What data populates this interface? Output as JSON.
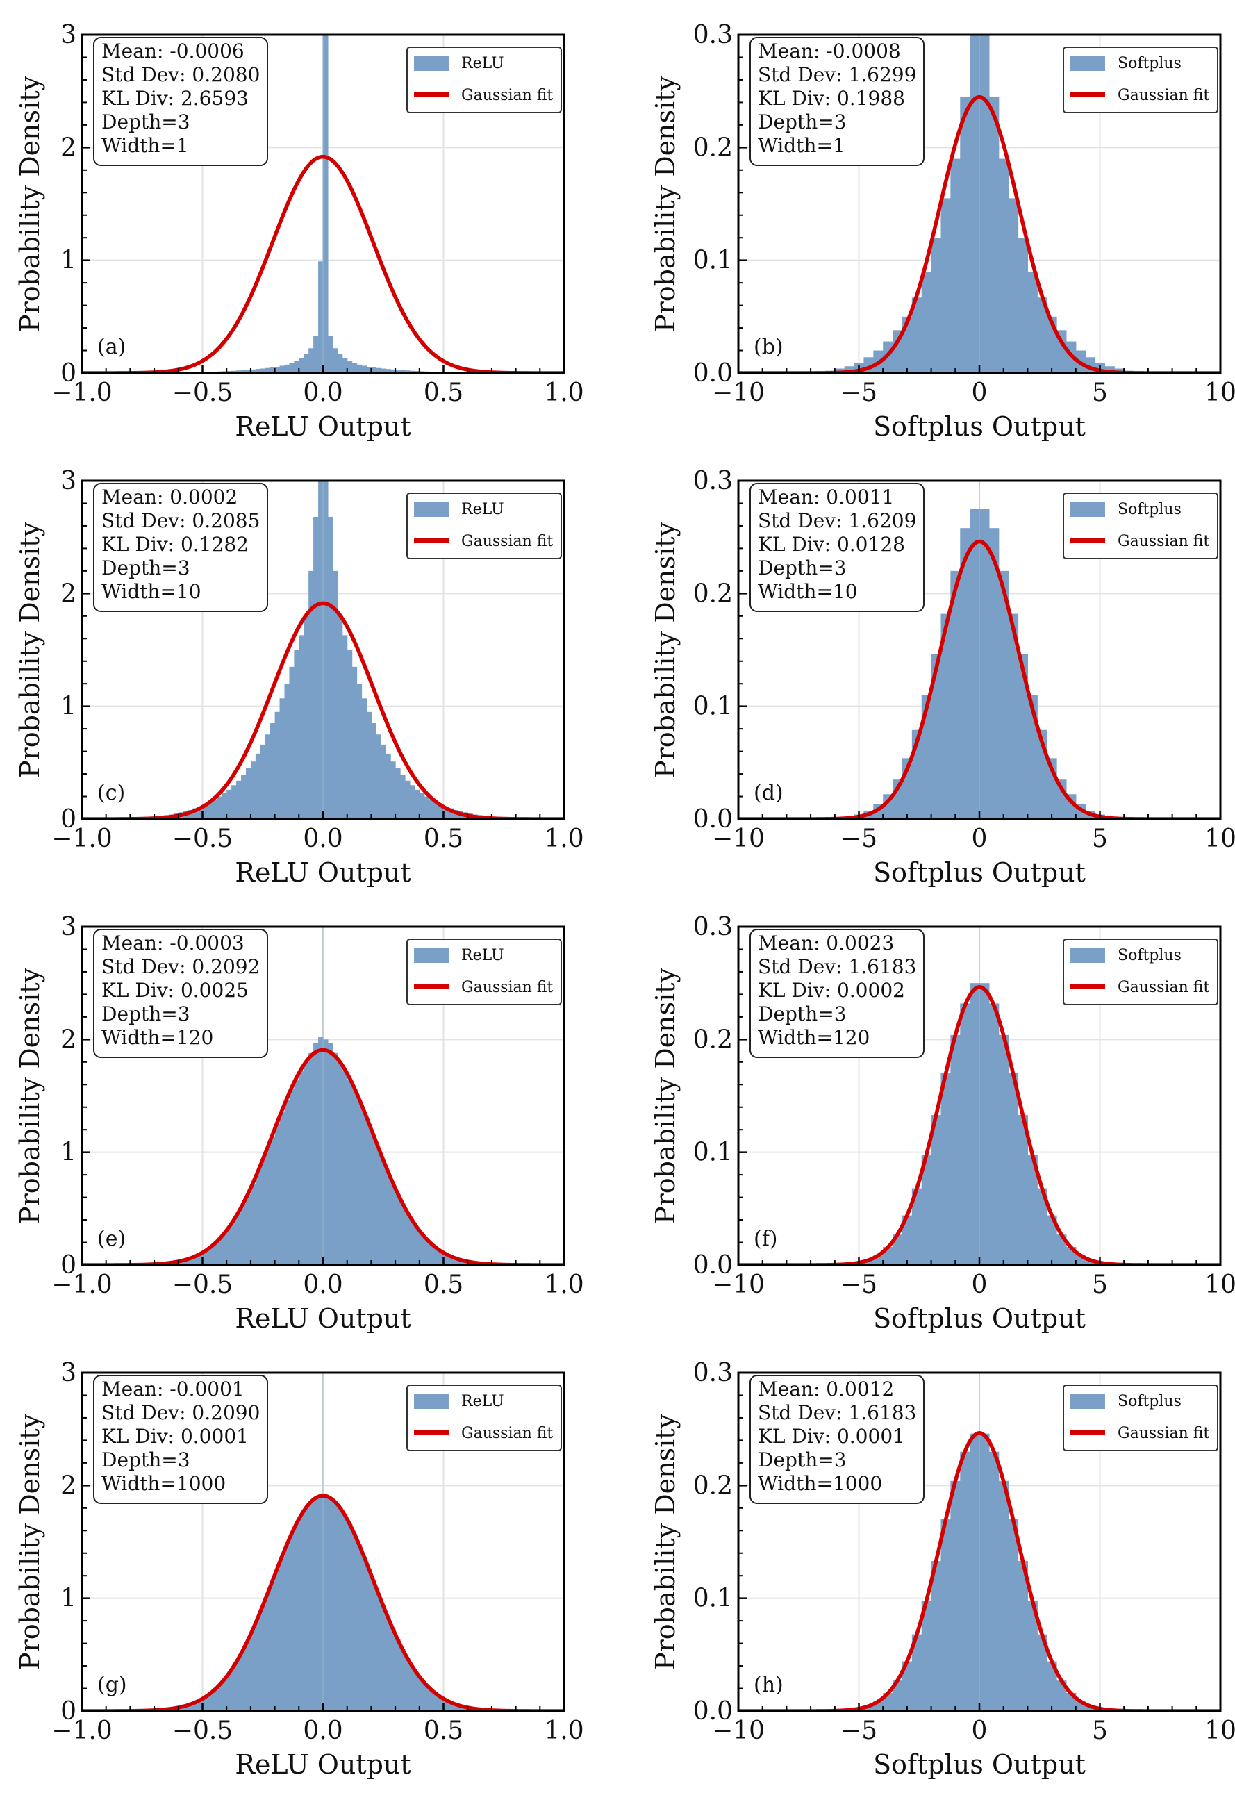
{
  "figure": {
    "layout": "4 rows x 2 columns grid of histogram panels",
    "colors": {
      "histogram_fill": "#7aa0c8",
      "gaussian_line": "#d40000",
      "grid": "#e3e3e3",
      "axis": "#000000"
    }
  },
  "chart_data": [
    {
      "type": "histogram",
      "panel": "(a)",
      "xlabel": "ReLU Output",
      "ylabel": "Probability Density",
      "xlim": [
        -1.0,
        1.0
      ],
      "ylim": [
        0,
        3
      ],
      "xticks": [
        "−1.0",
        "−0.5",
        "0.0",
        "0.5",
        "1.0"
      ],
      "xtick_values": [
        -1.0,
        -0.5,
        0.0,
        0.5,
        1.0
      ],
      "yticks": [
        "0",
        "1",
        "2",
        "3"
      ],
      "ytick_values": [
        0,
        1,
        2,
        3
      ],
      "grid": true,
      "legend": {
        "position": "top-right",
        "entries": [
          "ReLU",
          "Gaussian fit"
        ]
      },
      "stats": [
        "Mean: -0.0006",
        "Std Dev: 0.2080",
        "KL Div: 2.6593",
        "Depth=3",
        "Width=1"
      ],
      "fit": {
        "mean": -0.0006,
        "std": 0.208
      },
      "bin_width": 0.02,
      "half_bins_note": "density per bin for bin centers 0.01, 0.03, ... moving outward; mirrored to negative side except overrides",
      "half_densities": [
        12.0,
        0.33,
        0.22,
        0.17,
        0.13,
        0.11,
        0.09,
        0.075,
        0.065,
        0.055,
        0.05,
        0.045,
        0.04,
        0.036,
        0.032,
        0.029,
        0.026,
        0.023,
        0.02,
        0.018,
        0.016,
        0.014,
        0.012,
        0.011,
        0.01,
        0.009,
        0.008,
        0.007,
        0.006,
        0.005,
        0.004,
        0.004,
        0.003,
        0.003,
        0.002,
        0.002,
        0.002,
        0.001,
        0.001,
        0.001
      ],
      "center_overrides": {
        "-0.01": 0.99,
        "0.01": 12.0,
        "-0.03": 0.33,
        "0.03": 0.33
      }
    },
    {
      "type": "histogram",
      "panel": "(b)",
      "xlabel": "Softplus Output",
      "ylabel": "Probability Density",
      "xlim": [
        -10,
        10
      ],
      "ylim": [
        0,
        0.3
      ],
      "xticks": [
        "−10",
        "−5",
        "0",
        "5",
        "10"
      ],
      "xtick_values": [
        -10,
        -5,
        0,
        5,
        10
      ],
      "yticks": [
        "0.0",
        "0.1",
        "0.2",
        "0.3"
      ],
      "ytick_values": [
        0,
        0.1,
        0.2,
        0.3
      ],
      "grid": true,
      "legend": {
        "position": "top-right",
        "entries": [
          "Softplus",
          "Gaussian fit"
        ]
      },
      "stats": [
        "Mean: -0.0008",
        "Std Dev: 1.6299",
        "KL Div: 0.1988",
        "Depth=3",
        "Width=1"
      ],
      "fit": {
        "mean": -0.0008,
        "std": 1.6299
      },
      "bin_width": 0.4,
      "half_densities": [
        0.4,
        0.245,
        0.19,
        0.155,
        0.12,
        0.09,
        0.067,
        0.05,
        0.038,
        0.028,
        0.02,
        0.014,
        0.009,
        0.006,
        0.004,
        0.002,
        0.001,
        0.001,
        0.0005,
        0.0,
        0,
        0,
        0,
        0,
        0
      ],
      "center_overrides": {}
    },
    {
      "type": "histogram",
      "panel": "(c)",
      "xlabel": "ReLU Output",
      "ylabel": "Probability Density",
      "xlim": [
        -1.0,
        1.0
      ],
      "ylim": [
        0,
        3
      ],
      "xticks": [
        "−1.0",
        "−0.5",
        "0.0",
        "0.5",
        "1.0"
      ],
      "xtick_values": [
        -1.0,
        -0.5,
        0.0,
        0.5,
        1.0
      ],
      "yticks": [
        "0",
        "1",
        "2",
        "3"
      ],
      "ytick_values": [
        0,
        1,
        2,
        3
      ],
      "grid": true,
      "legend": {
        "position": "top-right",
        "entries": [
          "ReLU",
          "Gaussian fit"
        ]
      },
      "stats": [
        "Mean: 0.0002",
        "Std Dev: 0.2085",
        "KL Div: 0.1282",
        "Depth=3",
        "Width=10"
      ],
      "fit": {
        "mean": 0.0002,
        "std": 0.2085
      },
      "bin_width": 0.02,
      "half_densities": [
        3.3,
        2.68,
        2.2,
        1.8,
        1.63,
        1.5,
        1.35,
        1.2,
        1.07,
        0.95,
        0.85,
        0.75,
        0.66,
        0.58,
        0.51,
        0.45,
        0.39,
        0.34,
        0.3,
        0.26,
        0.23,
        0.2,
        0.17,
        0.15,
        0.13,
        0.11,
        0.095,
        0.08,
        0.07,
        0.06,
        0.05,
        0.04,
        0.035,
        0.03,
        0.025,
        0.02,
        0.017,
        0.015,
        0.012,
        0.01,
        0.008,
        0.007,
        0.006,
        0.005,
        0.004,
        0.003,
        0.002,
        0.002,
        0.001,
        0.001
      ],
      "center_overrides": {}
    },
    {
      "type": "histogram",
      "panel": "(d)",
      "xlabel": "Softplus Output",
      "ylabel": "Probability Density",
      "xlim": [
        -10,
        10
      ],
      "ylim": [
        0,
        0.3
      ],
      "xticks": [
        "−10",
        "−5",
        "0",
        "5",
        "10"
      ],
      "xtick_values": [
        -10,
        -5,
        0,
        5,
        10
      ],
      "yticks": [
        "0.0",
        "0.1",
        "0.2",
        "0.3"
      ],
      "ytick_values": [
        0,
        0.1,
        0.2,
        0.3
      ],
      "grid": true,
      "legend": {
        "position": "top-right",
        "entries": [
          "Softplus",
          "Gaussian fit"
        ]
      },
      "stats": [
        "Mean: 0.0011",
        "Std Dev: 1.6209",
        "KL Div: 0.0128",
        "Depth=3",
        "Width=10"
      ],
      "fit": {
        "mean": 0.0011,
        "std": 1.6209
      },
      "bin_width": 0.4,
      "half_densities": [
        0.275,
        0.258,
        0.22,
        0.182,
        0.146,
        0.11,
        0.079,
        0.054,
        0.035,
        0.022,
        0.013,
        0.007,
        0.004,
        0.002,
        0.001,
        0.0005,
        0,
        0,
        0,
        0,
        0,
        0,
        0,
        0,
        0
      ],
      "center_overrides": {}
    },
    {
      "type": "histogram",
      "panel": "(e)",
      "xlabel": "ReLU Output",
      "ylabel": "Probability Density",
      "xlim": [
        -1.0,
        1.0
      ],
      "ylim": [
        0,
        3
      ],
      "xticks": [
        "−1.0",
        "−0.5",
        "0.0",
        "0.5",
        "1.0"
      ],
      "xtick_values": [
        -1.0,
        -0.5,
        0.0,
        0.5,
        1.0
      ],
      "yticks": [
        "0",
        "1",
        "2",
        "3"
      ],
      "ytick_values": [
        0,
        1,
        2,
        3
      ],
      "grid": true,
      "legend": {
        "position": "top-right",
        "entries": [
          "ReLU",
          "Gaussian fit"
        ]
      },
      "stats": [
        "Mean: -0.0003",
        "Std Dev: 0.2092",
        "KL Div: 0.0025",
        "Depth=3",
        "Width=120"
      ],
      "fit": {
        "mean": -0.0003,
        "std": 0.2092
      },
      "bin_width": 0.02,
      "half_densities": [
        2.0,
        1.97,
        1.88,
        1.8,
        1.72,
        1.64,
        1.56,
        1.46,
        1.36,
        1.25,
        1.14,
        1.03,
        0.925,
        0.82,
        0.72,
        0.63,
        0.545,
        0.465,
        0.395,
        0.33,
        0.275,
        0.228,
        0.187,
        0.152,
        0.122,
        0.097,
        0.077,
        0.06,
        0.046,
        0.035,
        0.027,
        0.02,
        0.015,
        0.011,
        0.008,
        0.006,
        0.004,
        0.003,
        0.002,
        0.001
      ],
      "center_overrides": {
        "-0.01": 2.02
      }
    },
    {
      "type": "histogram",
      "panel": "(f)",
      "xlabel": "Softplus Output",
      "ylabel": "Probability Density",
      "xlim": [
        -10,
        10
      ],
      "ylim": [
        0,
        0.3
      ],
      "xticks": [
        "−10",
        "−5",
        "0",
        "5",
        "10"
      ],
      "xtick_values": [
        -10,
        -5,
        0,
        5,
        10
      ],
      "yticks": [
        "0.0",
        "0.1",
        "0.2",
        "0.3"
      ],
      "ytick_values": [
        0,
        0.1,
        0.2,
        0.3
      ],
      "grid": true,
      "legend": {
        "position": "top-right",
        "entries": [
          "Softplus",
          "Gaussian fit"
        ]
      },
      "stats": [
        "Mean: 0.0023",
        "Std Dev: 1.6183",
        "KL Div: 0.0002",
        "Depth=3",
        "Width=120"
      ],
      "fit": {
        "mean": 0.0023,
        "std": 1.6183
      },
      "bin_width": 0.4,
      "half_densities": [
        0.25,
        0.232,
        0.204,
        0.17,
        0.133,
        0.098,
        0.068,
        0.044,
        0.027,
        0.016,
        0.0085,
        0.0043,
        0.0021,
        0.0009,
        0.0004,
        0,
        0,
        0,
        0,
        0,
        0,
        0,
        0,
        0,
        0
      ],
      "center_overrides": {}
    },
    {
      "type": "histogram",
      "panel": "(g)",
      "xlabel": "ReLU Output",
      "ylabel": "Probability Density",
      "xlim": [
        -1.0,
        1.0
      ],
      "ylim": [
        0,
        3
      ],
      "xticks": [
        "−1.0",
        "−0.5",
        "0.0",
        "0.5",
        "1.0"
      ],
      "xtick_values": [
        -1.0,
        -0.5,
        0.0,
        0.5,
        1.0
      ],
      "yticks": [
        "0",
        "1",
        "2",
        "3"
      ],
      "ytick_values": [
        0,
        1,
        2,
        3
      ],
      "grid": true,
      "legend": {
        "position": "top-right",
        "entries": [
          "ReLU",
          "Gaussian fit"
        ]
      },
      "stats": [
        "Mean: -0.0001",
        "Std Dev: 0.2090",
        "KL Div: 0.0001",
        "Depth=3",
        "Width=1000"
      ],
      "fit": {
        "mean": -0.0001,
        "std": 0.209
      },
      "bin_width": 0.02,
      "half_densities": [
        1.92,
        1.89,
        1.855,
        1.805,
        1.74,
        1.662,
        1.574,
        1.476,
        1.371,
        1.263,
        1.153,
        1.043,
        0.934,
        0.829,
        0.729,
        0.635,
        0.549,
        0.47,
        0.399,
        0.335,
        0.279,
        0.23,
        0.188,
        0.153,
        0.123,
        0.097,
        0.077,
        0.06,
        0.046,
        0.035,
        0.027,
        0.02,
        0.015,
        0.011,
        0.008,
        0.006,
        0.004,
        0.003,
        0.002,
        0.001
      ],
      "center_overrides": {}
    },
    {
      "type": "histogram",
      "panel": "(h)",
      "xlabel": "Softplus Output",
      "ylabel": "Probability Density",
      "xlim": [
        -10,
        10
      ],
      "ylim": [
        0,
        0.3
      ],
      "xticks": [
        "−10",
        "−5",
        "0",
        "5",
        "10"
      ],
      "xtick_values": [
        -10,
        -5,
        0,
        5,
        10
      ],
      "yticks": [
        "0.0",
        "0.1",
        "0.2",
        "0.3"
      ],
      "ytick_values": [
        0,
        0.1,
        0.2,
        0.3
      ],
      "grid": true,
      "legend": {
        "position": "top-right",
        "entries": [
          "Softplus",
          "Gaussian fit"
        ]
      },
      "stats": [
        "Mean: 0.0012",
        "Std Dev: 1.6183",
        "KL Div: 0.0001",
        "Depth=3",
        "Width=1000"
      ],
      "fit": {
        "mean": 0.0012,
        "std": 1.6183
      },
      "bin_width": 0.4,
      "half_densities": [
        0.246,
        0.23,
        0.204,
        0.17,
        0.133,
        0.098,
        0.068,
        0.044,
        0.027,
        0.016,
        0.0085,
        0.0043,
        0.0021,
        0.0009,
        0.0004,
        0,
        0,
        0,
        0,
        0,
        0,
        0,
        0,
        0,
        0
      ],
      "center_overrides": {}
    }
  ]
}
